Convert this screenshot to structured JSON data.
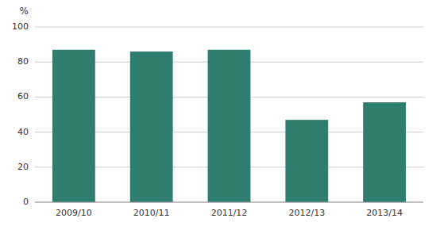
{
  "chart_data": {
    "type": "bar",
    "ylabel": "%",
    "categories": [
      "2009/10",
      "2010/11",
      "2011/12",
      "2012/13",
      "2013/14"
    ],
    "values": [
      87,
      86,
      87,
      47,
      57
    ],
    "color": "#2e7d6e",
    "ylim": [
      0,
      100
    ],
    "yticks": [
      0,
      20,
      40,
      60,
      80,
      100
    ],
    "grid": true
  }
}
